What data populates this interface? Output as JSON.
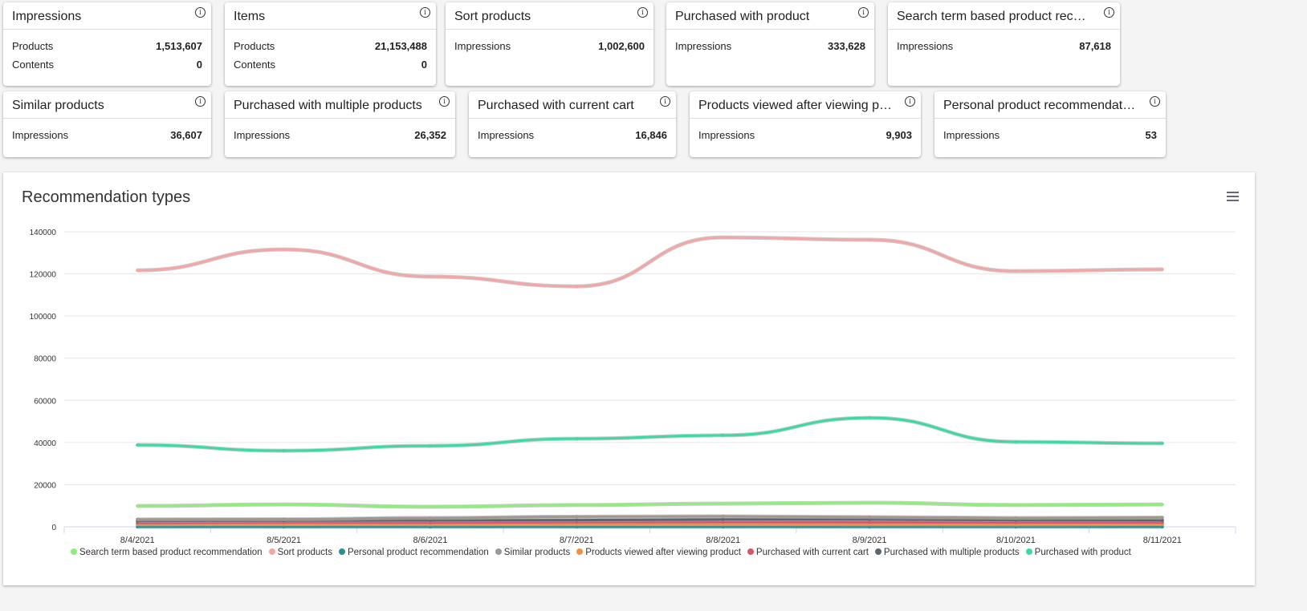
{
  "cards": [
    {
      "title": "Impressions",
      "rows": [
        {
          "label": "Products",
          "value": "1,513,607"
        },
        {
          "label": "Contents",
          "value": "0"
        }
      ]
    },
    {
      "title": "Items",
      "rows": [
        {
          "label": "Products",
          "value": "21,153,488"
        },
        {
          "label": "Contents",
          "value": "0"
        }
      ]
    },
    {
      "title": "Sort products",
      "rows": [
        {
          "label": "Impressions",
          "value": "1,002,600"
        }
      ]
    },
    {
      "title": "Purchased with product",
      "rows": [
        {
          "label": "Impressions",
          "value": "333,628"
        }
      ]
    },
    {
      "title": "Search term based product recommendation",
      "rows": [
        {
          "label": "Impressions",
          "value": "87,618"
        }
      ]
    },
    {
      "title": "Similar products",
      "rows": [
        {
          "label": "Impressions",
          "value": "36,607"
        }
      ]
    },
    {
      "title": "Purchased with multiple products",
      "rows": [
        {
          "label": "Impressions",
          "value": "26,352"
        }
      ]
    },
    {
      "title": "Purchased with current cart",
      "rows": [
        {
          "label": "Impressions",
          "value": "16,846"
        }
      ]
    },
    {
      "title": "Products viewed after viewing product",
      "rows": [
        {
          "label": "Impressions",
          "value": "9,903"
        }
      ]
    },
    {
      "title": "Personal product recommendation",
      "rows": [
        {
          "label": "Impressions",
          "value": "53"
        }
      ]
    }
  ],
  "chart_data": {
    "type": "line",
    "title": "Recommendation types",
    "ylim": [
      0,
      140000
    ],
    "yticks": [
      0,
      20000,
      40000,
      60000,
      80000,
      100000,
      120000,
      140000
    ],
    "categories": [
      "8/4/2021",
      "8/5/2021",
      "8/6/2021",
      "8/7/2021",
      "8/8/2021",
      "8/9/2021",
      "8/10/2021",
      "8/11/2021"
    ],
    "legend": "bottom",
    "grid": true,
    "series": [
      {
        "name": "Search term based product recommendation",
        "color": "#90ed7d",
        "values": [
          9900,
          10600,
          9500,
          10300,
          11000,
          11400,
          10300,
          10600
        ]
      },
      {
        "name": "Sort products",
        "color": "#f7a35c",
        "values": [
          121700,
          131600,
          118700,
          114100,
          137300,
          136200,
          121300,
          122100
        ]
      },
      {
        "name": "Personal product recommendation",
        "color": "#2b908f",
        "values": [
          10,
          10,
          10,
          10,
          10,
          10,
          10,
          10
        ]
      },
      {
        "name": "Similar products",
        "color": "#a09890",
        "values": [
          3500,
          3600,
          4200,
          4800,
          5000,
          4600,
          4200,
          4400
        ]
      },
      {
        "name": "Products viewed after viewing product",
        "color": "#f28f43",
        "values": [
          1200,
          1300,
          1200,
          1300,
          1300,
          1200,
          1100,
          1300
        ]
      },
      {
        "name": "Purchased with current cart",
        "color": "#d9536f",
        "values": [
          1800,
          2100,
          2000,
          2200,
          2300,
          2200,
          2100,
          2100
        ]
      },
      {
        "name": "Purchased with multiple products",
        "color": "#5a6570",
        "values": [
          2800,
          3000,
          3100,
          3200,
          3500,
          3500,
          3200,
          3100
        ]
      },
      {
        "name": "Purchased with product",
        "color": "#3cd9a8",
        "values": [
          38800,
          36100,
          38400,
          41800,
          43400,
          51700,
          40300,
          39600
        ]
      }
    ],
    "sort_products_display_color": "#f4a6a6"
  }
}
